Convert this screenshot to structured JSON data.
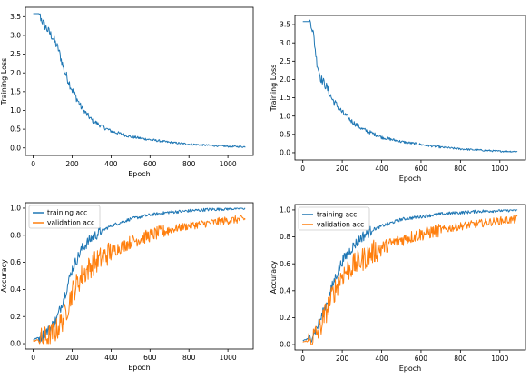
{
  "chart_data": [
    {
      "type": "line",
      "xlabel": "Epoch",
      "ylabel": "Training Loss",
      "xlim": [
        -40,
        1130
      ],
      "ylim": [
        -0.2,
        3.75
      ],
      "xticks": [
        0,
        200,
        400,
        600,
        800,
        1000
      ],
      "yticks": [
        0.0,
        0.5,
        1.0,
        1.5,
        2.0,
        2.5,
        3.0,
        3.5
      ],
      "series": [
        {
          "color": "#1f77b4",
          "x": [
            0,
            30,
            40,
            60,
            100,
            130,
            160,
            200,
            250,
            300,
            350,
            400,
            500,
            600,
            700,
            800,
            900,
            1000,
            1090
          ],
          "values": [
            3.58,
            3.58,
            3.45,
            3.25,
            2.95,
            2.62,
            2.05,
            1.55,
            1.05,
            0.75,
            0.58,
            0.45,
            0.3,
            0.22,
            0.15,
            0.1,
            0.07,
            0.04,
            0.03
          ]
        }
      ]
    },
    {
      "type": "line",
      "xlabel": "Epoch",
      "ylabel": "Training Loss",
      "xlim": [
        -40,
        1130
      ],
      "ylim": [
        -0.2,
        3.75
      ],
      "xticks": [
        0,
        200,
        400,
        600,
        800,
        1000
      ],
      "yticks": [
        0.0,
        0.5,
        1.0,
        1.5,
        2.0,
        2.5,
        3.0,
        3.5
      ],
      "series": [
        {
          "color": "#1f77b4",
          "x": [
            0,
            40,
            55,
            70,
            90,
            120,
            150,
            200,
            250,
            300,
            400,
            500,
            600,
            700,
            800,
            900,
            1000,
            1090
          ],
          "values": [
            3.58,
            3.58,
            3.2,
            2.5,
            2.05,
            1.8,
            1.45,
            1.1,
            0.85,
            0.65,
            0.42,
            0.3,
            0.22,
            0.15,
            0.1,
            0.07,
            0.04,
            0.03
          ]
        }
      ]
    },
    {
      "type": "line",
      "xlabel": "Epoch",
      "ylabel": "Accuracy",
      "xlim": [
        -40,
        1130
      ],
      "ylim": [
        -0.04,
        1.04
      ],
      "xticks": [
        0,
        200,
        400,
        600,
        800,
        1000
      ],
      "yticks": [
        0.0,
        0.2,
        0.4,
        0.6,
        0.8,
        1.0
      ],
      "legend": "top-left",
      "series": [
        {
          "name": "training acc",
          "color": "#1f77b4",
          "x": [
            0,
            40,
            80,
            120,
            160,
            200,
            250,
            300,
            350,
            400,
            500,
            600,
            700,
            800,
            900,
            1000,
            1090
          ],
          "values": [
            0.03,
            0.05,
            0.1,
            0.18,
            0.35,
            0.55,
            0.7,
            0.78,
            0.83,
            0.87,
            0.92,
            0.95,
            0.97,
            0.98,
            0.99,
            0.995,
            1.0
          ]
        },
        {
          "name": "validation acc",
          "color": "#ff7f0e",
          "x": [
            0,
            40,
            80,
            120,
            160,
            200,
            250,
            300,
            350,
            400,
            500,
            600,
            700,
            800,
            900,
            1000,
            1090
          ],
          "values": [
            0.02,
            0.03,
            0.05,
            0.1,
            0.2,
            0.38,
            0.5,
            0.58,
            0.63,
            0.68,
            0.75,
            0.8,
            0.84,
            0.87,
            0.89,
            0.91,
            0.92
          ]
        }
      ]
    },
    {
      "type": "line",
      "xlabel": "Epoch",
      "ylabel": "Accuracy",
      "xlim": [
        -40,
        1130
      ],
      "ylim": [
        -0.04,
        1.04
      ],
      "xticks": [
        0,
        200,
        400,
        600,
        800,
        1000
      ],
      "yticks": [
        0.0,
        0.2,
        0.4,
        0.6,
        0.8,
        1.0
      ],
      "legend": "top-left",
      "series": [
        {
          "name": "training acc",
          "color": "#1f77b4",
          "x": [
            0,
            40,
            80,
            120,
            160,
            200,
            250,
            300,
            350,
            400,
            500,
            600,
            700,
            800,
            900,
            1000,
            1090
          ],
          "values": [
            0.03,
            0.05,
            0.15,
            0.3,
            0.48,
            0.62,
            0.72,
            0.8,
            0.85,
            0.88,
            0.93,
            0.95,
            0.97,
            0.98,
            0.99,
            0.995,
            1.0
          ]
        },
        {
          "name": "validation acc",
          "color": "#ff7f0e",
          "x": [
            0,
            40,
            80,
            120,
            160,
            200,
            250,
            300,
            350,
            400,
            500,
            600,
            700,
            800,
            900,
            1000,
            1090
          ],
          "values": [
            0.02,
            0.03,
            0.1,
            0.25,
            0.4,
            0.52,
            0.58,
            0.63,
            0.68,
            0.72,
            0.78,
            0.82,
            0.85,
            0.88,
            0.9,
            0.92,
            0.93
          ]
        }
      ]
    }
  ]
}
